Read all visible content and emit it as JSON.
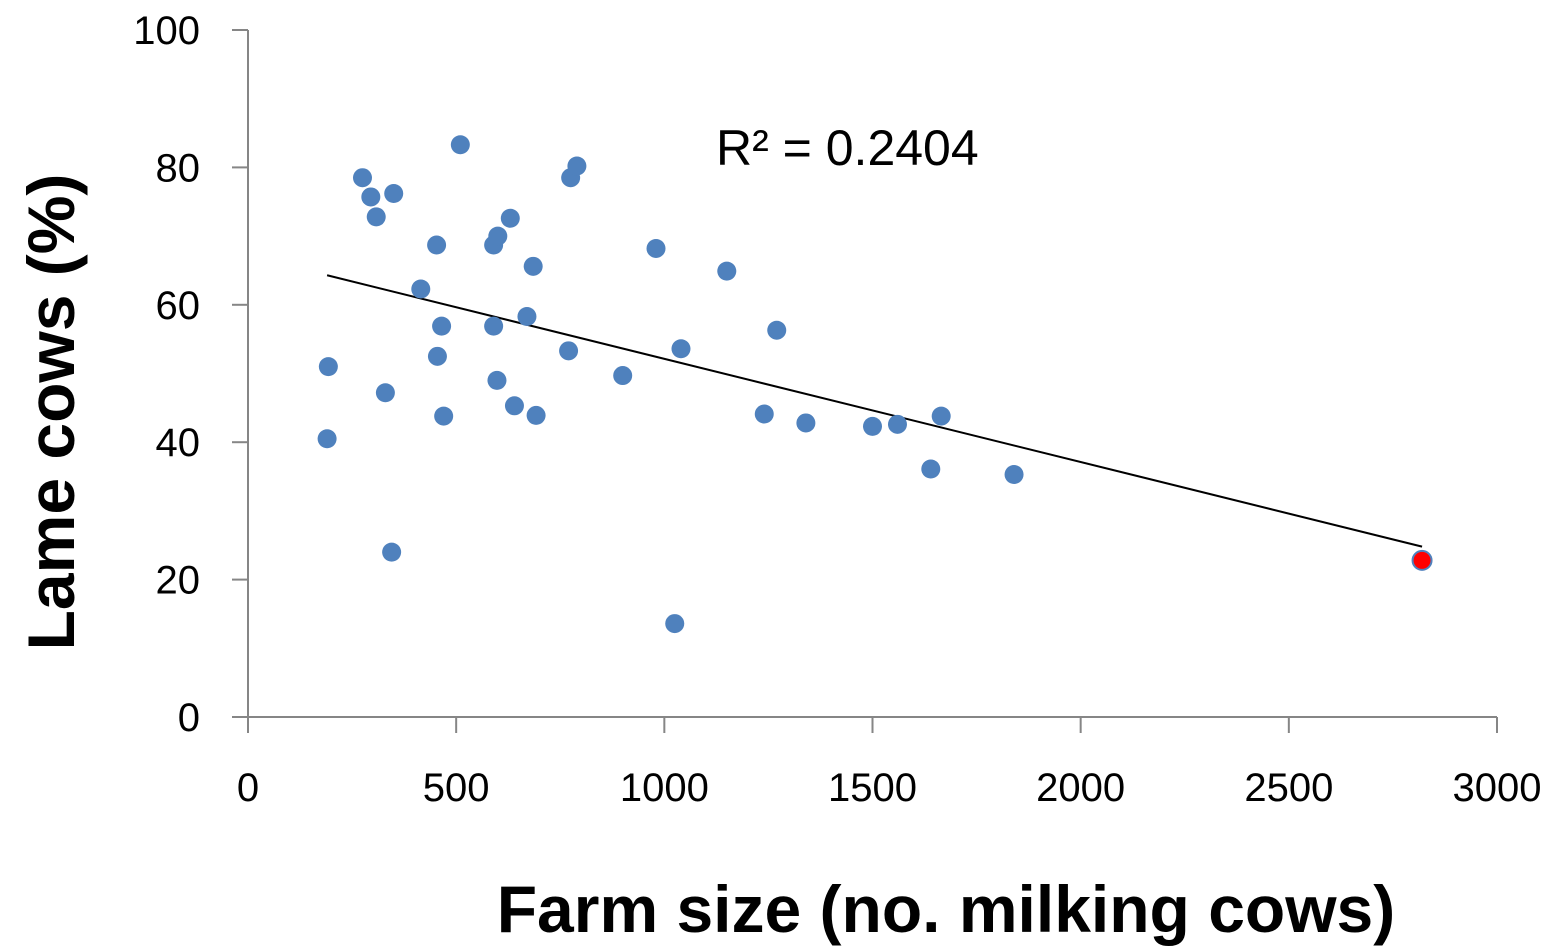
{
  "chart_data": {
    "type": "scatter",
    "xlabel": "Farm size (no. milking cows)",
    "ylabel": "Lame cows (%)",
    "xlim": [
      0,
      3000
    ],
    "ylim": [
      0,
      100
    ],
    "x_ticks": [
      "0",
      "500",
      "1000",
      "1500",
      "2000",
      "2500",
      "3000"
    ],
    "y_ticks": [
      "0",
      "20",
      "40",
      "60",
      "80",
      "100"
    ],
    "grid": false,
    "legend": "none",
    "annotation": "R² = 0.2404",
    "colors": {
      "points": "#4f81bd",
      "highlight": "#ff0000",
      "trendline": "#000000",
      "axis": "#868686"
    },
    "trendline": {
      "type": "linear",
      "x": [
        190,
        2820
      ],
      "y": [
        64.3,
        24.8
      ]
    },
    "series": [
      {
        "points": [
          [
            190,
            40.5
          ],
          [
            193,
            51
          ],
          [
            275,
            78.5
          ],
          [
            295,
            75.7
          ],
          [
            308,
            72.8
          ],
          [
            330,
            47.2
          ],
          [
            345,
            24
          ],
          [
            350,
            76.2
          ],
          [
            415,
            62.3
          ],
          [
            453,
            68.7
          ],
          [
            455,
            52.5
          ],
          [
            465,
            56.9
          ],
          [
            470,
            43.8
          ],
          [
            510,
            83.3
          ],
          [
            590,
            68.7
          ],
          [
            590,
            56.9
          ],
          [
            598,
            49
          ],
          [
            600,
            70
          ],
          [
            630,
            72.6
          ],
          [
            640,
            45.3
          ],
          [
            670,
            58.3
          ],
          [
            685,
            65.6
          ],
          [
            692,
            43.9
          ],
          [
            770,
            53.3
          ],
          [
            775,
            78.5
          ],
          [
            790,
            80.2
          ],
          [
            900,
            49.7
          ],
          [
            980,
            68.2
          ],
          [
            1025,
            13.6
          ],
          [
            1040,
            53.6
          ],
          [
            1150,
            64.9
          ],
          [
            1240,
            44.1
          ],
          [
            1270,
            56.3
          ],
          [
            1340,
            42.8
          ],
          [
            1500,
            42.3
          ],
          [
            1560,
            42.6
          ],
          [
            1640,
            36.1
          ],
          [
            1665,
            43.8
          ],
          [
            1840,
            35.3
          ]
        ]
      },
      {
        "highlight": true,
        "points": [
          [
            2820,
            22.8
          ]
        ]
      }
    ]
  }
}
